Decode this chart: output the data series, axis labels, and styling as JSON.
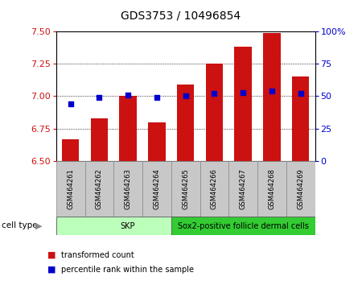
{
  "title": "GDS3753 / 10496854",
  "samples": [
    "GSM464261",
    "GSM464262",
    "GSM464263",
    "GSM464264",
    "GSM464265",
    "GSM464266",
    "GSM464267",
    "GSM464268",
    "GSM464269"
  ],
  "bar_values": [
    6.67,
    6.83,
    7.0,
    6.8,
    7.09,
    7.25,
    7.38,
    7.49,
    7.15
  ],
  "blue_values": [
    6.94,
    6.99,
    7.01,
    6.99,
    7.0,
    7.02,
    7.03,
    7.04,
    7.02
  ],
  "ylim": [
    6.5,
    7.5
  ],
  "yticks": [
    6.5,
    6.75,
    7.0,
    7.25,
    7.5
  ],
  "y2lim": [
    0,
    100
  ],
  "y2ticks": [
    0,
    25,
    50,
    75,
    100
  ],
  "bar_color": "#cc1111",
  "blue_color": "#0000cc",
  "cell_type_groups": [
    {
      "label": "SKP",
      "start": 0,
      "end": 4,
      "color": "#bbffbb"
    },
    {
      "label": "Sox2-positive follicle dermal cells",
      "start": 4,
      "end": 8,
      "color": "#33cc33"
    }
  ],
  "cell_type_label": "cell type",
  "legend_bar": "transformed count",
  "legend_blue": "percentile rank within the sample",
  "bar_width": 0.6,
  "title_fontsize": 10,
  "tick_fontsize": 8,
  "background_color": "#ffffff",
  "xlabel_box_color": "#c8c8c8",
  "xlabel_box_edge": "#888888"
}
